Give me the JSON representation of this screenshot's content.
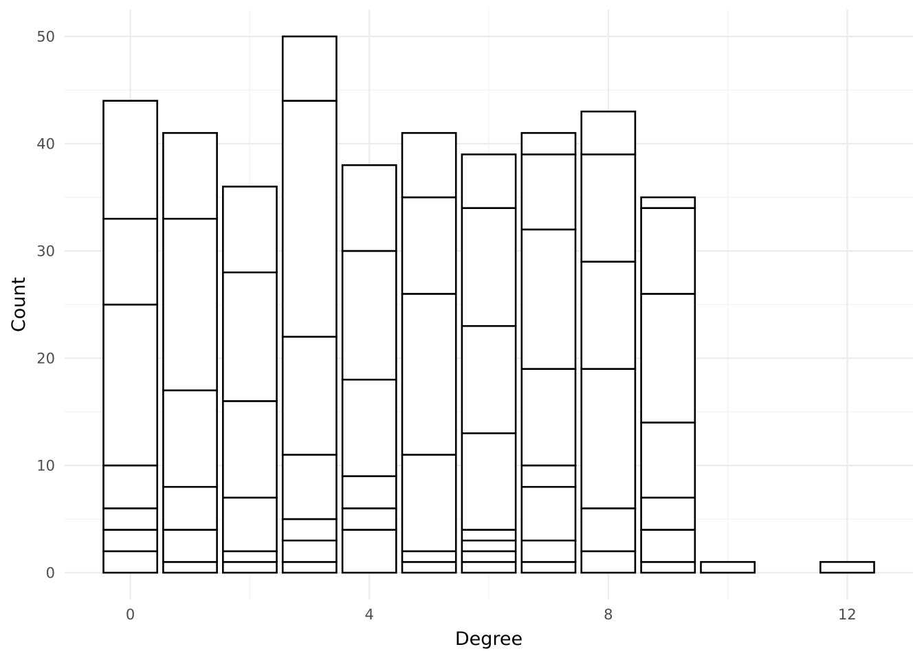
{
  "chart_data": {
    "type": "bar",
    "stacked": true,
    "xlabel": "Degree",
    "ylabel": "Count",
    "xlim": [
      -1.1,
      13.1
    ],
    "ylim": [
      -2.5,
      52.5
    ],
    "x_ticks": [
      0,
      4,
      8,
      12
    ],
    "y_ticks": [
      0,
      10,
      20,
      30,
      40,
      50
    ],
    "grid": true,
    "bar_fill": "#ffffff",
    "bar_outline": "#000000",
    "bars": [
      {
        "x": 0,
        "boundaries": [
          0,
          2,
          4,
          6,
          10,
          25,
          33,
          44
        ]
      },
      {
        "x": 1,
        "boundaries": [
          0,
          1,
          4,
          8,
          17,
          33,
          41
        ]
      },
      {
        "x": 2,
        "boundaries": [
          0,
          1,
          2,
          7,
          16,
          28,
          36
        ]
      },
      {
        "x": 3,
        "boundaries": [
          0,
          1,
          3,
          5,
          11,
          22,
          44,
          50
        ]
      },
      {
        "x": 4,
        "boundaries": [
          0,
          4,
          6,
          9,
          18,
          30,
          38
        ]
      },
      {
        "x": 5,
        "boundaries": [
          0,
          1,
          2,
          11,
          26,
          35,
          41
        ]
      },
      {
        "x": 6,
        "boundaries": [
          0,
          1,
          2,
          3,
          4,
          13,
          23,
          34,
          39
        ]
      },
      {
        "x": 7,
        "boundaries": [
          0,
          1,
          3,
          8,
          10,
          19,
          32,
          39,
          41
        ]
      },
      {
        "x": 8,
        "boundaries": [
          0,
          2,
          6,
          19,
          29,
          39,
          43
        ]
      },
      {
        "x": 9,
        "boundaries": [
          0,
          1,
          4,
          7,
          14,
          26,
          34,
          35
        ]
      },
      {
        "x": 10,
        "boundaries": [
          0,
          1
        ]
      },
      {
        "x": 12,
        "boundaries": [
          0,
          1
        ]
      }
    ],
    "totals": [
      44,
      41,
      36,
      50,
      38,
      41,
      39,
      41,
      43,
      35,
      1,
      1
    ]
  }
}
